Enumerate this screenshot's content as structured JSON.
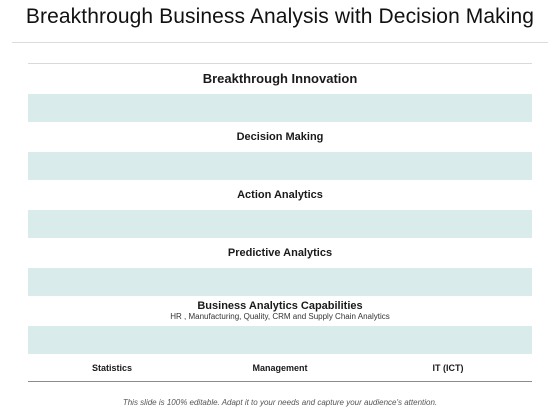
{
  "slide": {
    "title": "Breakthrough Business Analysis with Decision Making",
    "footer": "This slide is 100% editable. Adapt it to your needs and capture your audience's attention."
  },
  "diagram": {
    "levels": [
      "Breakthrough Innovation",
      "Decision Making",
      "Action Analytics",
      "Predictive Analytics"
    ],
    "capabilities": {
      "title": "Business Analytics Capabilities",
      "subtitle": "HR , Manufacturing, Quality, CRM and Supply Chain Analytics"
    },
    "foundations": [
      "Statistics",
      "Management",
      "IT   (ICT)"
    ]
  },
  "colors": {
    "band": "#d9ebea",
    "divider": "#8c8c8c"
  }
}
